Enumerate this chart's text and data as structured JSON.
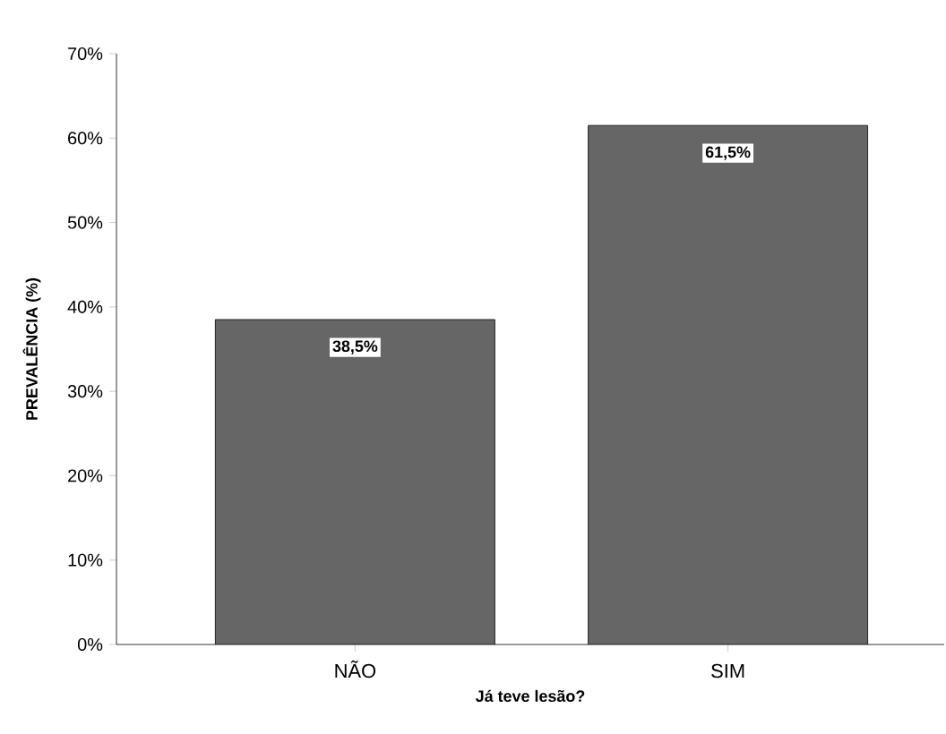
{
  "chart_data": {
    "type": "bar",
    "xlabel": "Já teve lesão?",
    "ylabel": "PREVALÊNCIA (%)",
    "categories": [
      "NÃO",
      "SIM"
    ],
    "values": [
      38.5,
      61.5
    ],
    "color": "#666666",
    "value_labels": [
      "38,5%",
      "61,5%"
    ],
    "ylim": [
      0,
      70
    ],
    "yticks": [
      {
        "value": 0,
        "label": "0%"
      },
      {
        "value": 10,
        "label": "10%"
      },
      {
        "value": 20,
        "label": "20%"
      },
      {
        "value": 30,
        "label": "30%"
      },
      {
        "value": 40,
        "label": "40%"
      },
      {
        "value": 50,
        "label": "50%"
      },
      {
        "value": 60,
        "label": "60%"
      },
      {
        "value": 70,
        "label": "70%"
      }
    ]
  }
}
